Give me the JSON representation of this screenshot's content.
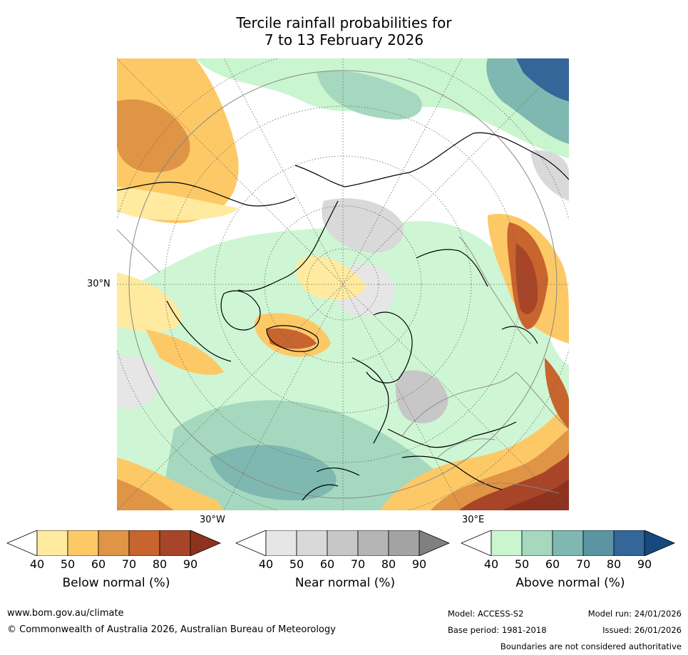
{
  "title_line1": "Tercile rainfall probabilities for",
  "title_line2": "7 to 13 February 2026",
  "map": {
    "lat_label": "30°N",
    "lon_label_west": "30°W",
    "lon_label_east": "30°E"
  },
  "colorbars": [
    {
      "name": "below",
      "label": "Below normal (%)",
      "ticks": [
        "40",
        "50",
        "60",
        "70",
        "80",
        "90"
      ],
      "colors": [
        "#ffffff",
        "#ffeaa0",
        "#fdc966",
        "#e09445",
        "#c8642e",
        "#a84528",
        "#8e3220"
      ]
    },
    {
      "name": "near",
      "label": "Near normal (%)",
      "ticks": [
        "40",
        "50",
        "60",
        "70",
        "80",
        "90"
      ],
      "colors": [
        "#ffffff",
        "#e6e6e6",
        "#d9d9d9",
        "#c7c7c7",
        "#b5b5b5",
        "#a3a3a3",
        "#808080"
      ]
    },
    {
      "name": "above",
      "label": "Above normal (%)",
      "ticks": [
        "40",
        "50",
        "60",
        "70",
        "80",
        "90"
      ],
      "colors": [
        "#ffffff",
        "#c9f5cf",
        "#a5d8bf",
        "#7fb8b0",
        "#5b94a3",
        "#336699",
        "#15497f"
      ]
    }
  ],
  "footer": {
    "website": "www.bom.gov.au/climate",
    "copyright": "© Commonwealth of Australia 2026, Australian Bureau of Meteorology",
    "model": "Model: ACCESS-S2",
    "base_period": "Base period: 1981-2018",
    "model_run": "Model run: 24/01/2026",
    "issued": "Issued: 26/01/2026",
    "boundaries": "Boundaries are not considered authoritative"
  }
}
